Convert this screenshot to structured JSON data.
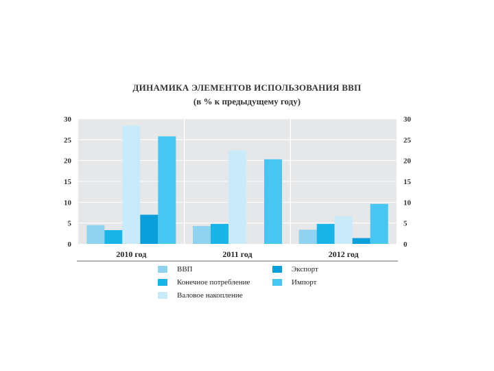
{
  "chart_data": {
    "type": "bar",
    "title": "ДИНАМИКА ЭЛЕМЕНТОВ ИСПОЛЬЗОВАНИЯ ВВП",
    "subtitle": "(в % к предыдущему году)",
    "categories": [
      "2010 год",
      "2011 год",
      "2012 год"
    ],
    "ylim": [
      0,
      30
    ],
    "yticks": [
      "0",
      "5",
      "10",
      "15",
      "20",
      "25",
      "30"
    ],
    "grid": true,
    "legend_position": "bottom",
    "series": [
      {
        "name": "ВВП",
        "color": "#8fd3f1",
        "values": [
          4.5,
          4.3,
          3.4
        ]
      },
      {
        "name": "Конечное потребление",
        "color": "#1ab5e8",
        "values": [
          3.3,
          4.8,
          4.8
        ]
      },
      {
        "name": "Валовое накопление",
        "color": "#c9ebf9",
        "values": [
          28.4,
          22.4,
          6.6
        ]
      },
      {
        "name": "Экспорт",
        "color": "#0a9fdb",
        "values": [
          7.0,
          0,
          1.4
        ]
      },
      {
        "name": "Импорт",
        "color": "#46c6f0",
        "values": [
          25.8,
          20.3,
          9.6
        ]
      }
    ]
  }
}
